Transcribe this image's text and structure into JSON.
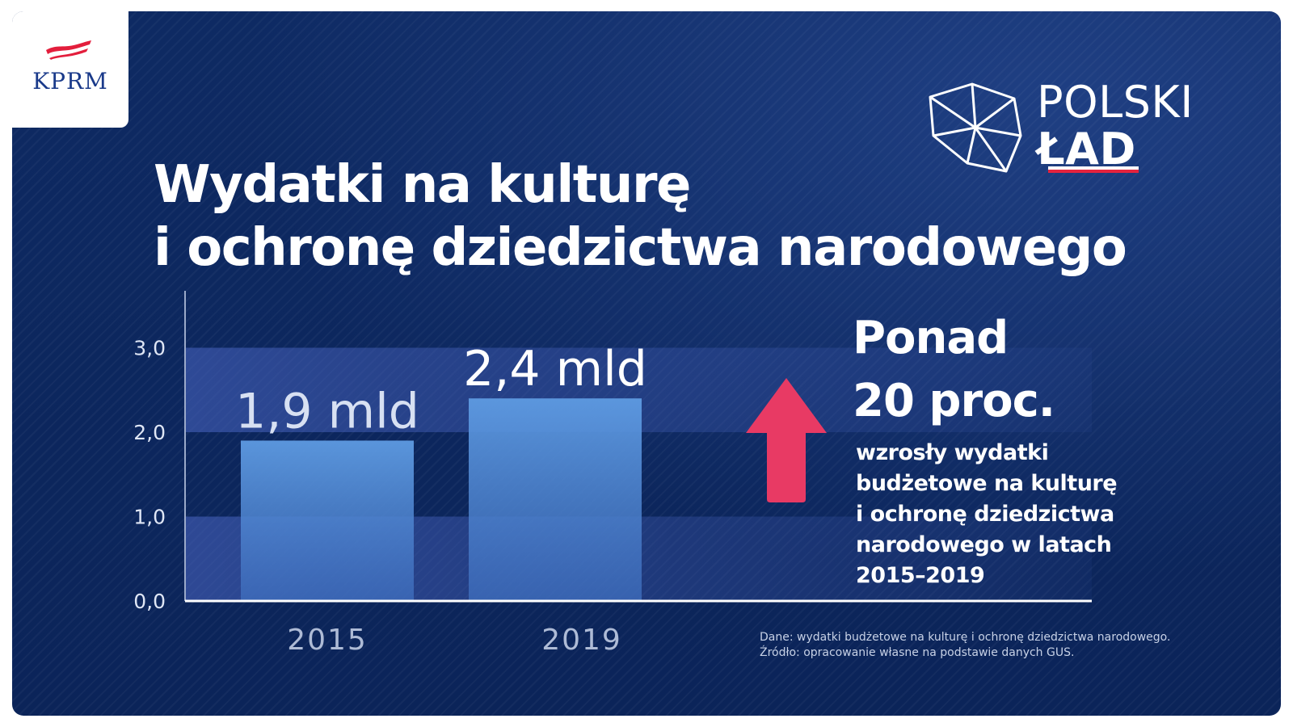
{
  "brand": {
    "kprm": "KPRM",
    "line1": "POLSKI",
    "line2": "ŁAD"
  },
  "headline": {
    "line1": "Wydatki na kulturę",
    "line2": "i ochronę dziedzictwa narodowego"
  },
  "highlight": {
    "line1": "Ponad",
    "line2": "20 proc.",
    "desc_lines": [
      "wzrosły wydatki",
      "budżetowe na kulturę",
      "i ochronę dziedzictwa",
      "narodowego w latach",
      "2015–2019"
    ]
  },
  "note": {
    "line1": "Dane: wydatki budżetowe na kulturę i ochronę dziedzictwa narodowego.",
    "line2": "Źródło: opracowanie własne na podstawie danych GUS."
  },
  "colors": {
    "background": "#0e2a63",
    "bar": "#5e9be2",
    "arrow": "#e83a64",
    "text": "#ffffff"
  },
  "chart_data": {
    "type": "bar",
    "categories": [
      "2015",
      "2019"
    ],
    "values": [
      1.9,
      2.4
    ],
    "data_labels": [
      "1,9 mld",
      "2,4 mld"
    ],
    "y_ticks": [
      "0,0",
      "1,0",
      "2,0",
      "3,0"
    ],
    "ylim": [
      0,
      3.6
    ],
    "grid": false
  }
}
